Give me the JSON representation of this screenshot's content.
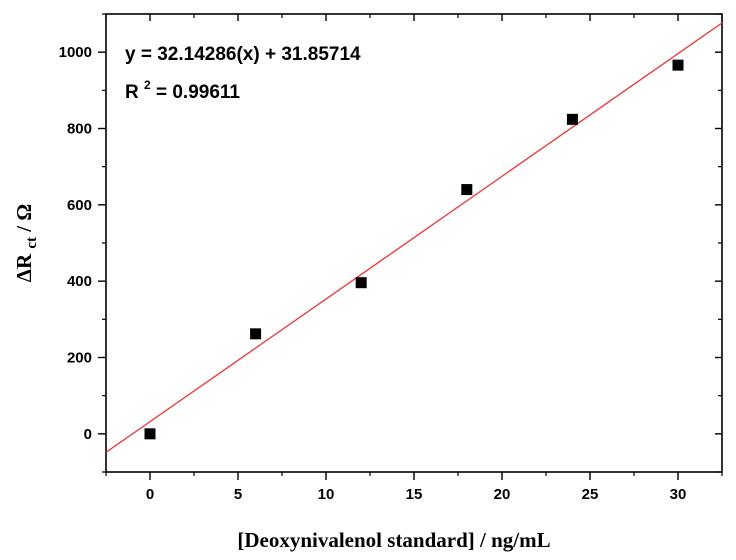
{
  "chart_data": {
    "type": "scatter",
    "xlabel": "[Deoxynivalenol standard] / ng/mL",
    "ylabel": {
      "main": "ΔR",
      "subscript": "ct",
      "suffix": " / Ω"
    },
    "xlim": [
      -2.5,
      32.5
    ],
    "ylim": [
      -100,
      1100
    ],
    "x_ticks": [
      0,
      5,
      10,
      15,
      20,
      25,
      30
    ],
    "y_ticks": [
      0,
      200,
      400,
      600,
      800,
      1000
    ],
    "grid": false,
    "legend": "none",
    "series": [
      {
        "marker": "square",
        "color": "#000000",
        "x": [
          0,
          6,
          12,
          18,
          24,
          30
        ],
        "y": [
          0,
          262,
          396,
          640,
          824,
          966
        ]
      }
    ],
    "fit": {
      "slope": 32.14286,
      "intercept": 31.85714,
      "color": "#e8403f"
    },
    "annotations": {
      "equation": "y = 32.14286(x) + 31.85714",
      "r2_prefix": "R",
      "r2_superscript": "2",
      "r2_value": " = 0.99611"
    }
  }
}
